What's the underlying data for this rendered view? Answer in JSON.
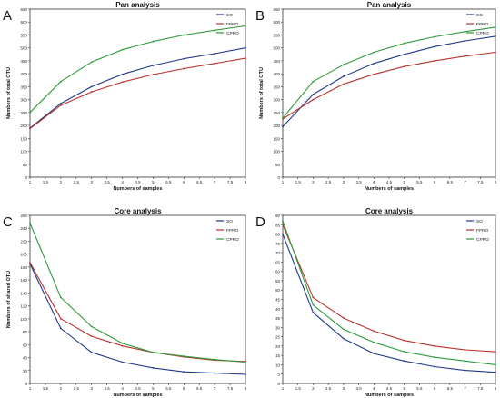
{
  "colors": {
    "SO": "#1f3a8a",
    "FPRO": "#b5342b",
    "CPRO": "#2e9a3a"
  },
  "chart_data": [
    {
      "panel_letter": "A",
      "type": "line",
      "title": "Pan analysis",
      "xlabel": "Numbers of samples",
      "ylabel": "Numbers of total OTU",
      "x": [
        1,
        2,
        3,
        4,
        5,
        6,
        7,
        8
      ],
      "xlim": [
        1,
        8
      ],
      "xticks": [
        "1",
        "1.5",
        "2",
        "2.5",
        "3",
        "3.5",
        "4",
        "4.5",
        "5",
        "5.5",
        "6",
        "6.5",
        "7",
        "7.5",
        "8"
      ],
      "ylim": [
        0,
        650
      ],
      "yticks": [
        "0",
        "50",
        "100",
        "150",
        "200",
        "250",
        "300",
        "350",
        "400",
        "450",
        "500",
        "550",
        "600",
        "650"
      ],
      "legend_position": "top-right",
      "series": [
        {
          "name": "SO",
          "values": [
            190,
            285,
            350,
            398,
            432,
            458,
            478,
            500
          ]
        },
        {
          "name": "FPRO",
          "values": [
            188,
            278,
            330,
            368,
            397,
            420,
            440,
            460
          ]
        },
        {
          "name": "CPRO",
          "values": [
            250,
            370,
            445,
            493,
            525,
            550,
            568,
            585
          ]
        }
      ]
    },
    {
      "panel_letter": "B",
      "type": "line",
      "title": "Pan analysis",
      "xlabel": "Numbers of samples",
      "ylabel": "Numbers of total OTU",
      "x": [
        1,
        2,
        3,
        4,
        5,
        6,
        7,
        8
      ],
      "xlim": [
        1,
        8
      ],
      "xticks": [
        "1",
        "1.5",
        "2",
        "2.5",
        "3",
        "3.5",
        "4",
        "4.5",
        "5",
        "5.5",
        "6",
        "6.5",
        "7",
        "7.5",
        "8"
      ],
      "ylim": [
        0,
        650
      ],
      "yticks": [
        "0",
        "50",
        "100",
        "150",
        "200",
        "250",
        "300",
        "350",
        "400",
        "450",
        "500",
        "550",
        "600",
        "650"
      ],
      "legend_position": "top-right",
      "series": [
        {
          "name": "SO",
          "values": [
            195,
            320,
            390,
            440,
            475,
            505,
            527,
            545
          ]
        },
        {
          "name": "FPRO",
          "values": [
            225,
            300,
            360,
            398,
            428,
            450,
            468,
            483
          ]
        },
        {
          "name": "CPRO",
          "values": [
            228,
            370,
            435,
            483,
            518,
            543,
            563,
            580
          ]
        }
      ]
    },
    {
      "panel_letter": "C",
      "type": "line",
      "title": "Core analysis",
      "xlabel": "Numbers of samples",
      "ylabel": "Numbers of shared OTU",
      "x": [
        1,
        2,
        3,
        4,
        5,
        6,
        7,
        8
      ],
      "xlim": [
        1,
        8
      ],
      "xticks": [
        "1",
        "1.5",
        "2",
        "2.5",
        "3",
        "3.5",
        "4",
        "4.5",
        "5",
        "5.5",
        "6",
        "6.5",
        "7",
        "7.5",
        "8"
      ],
      "ylim": [
        0,
        260
      ],
      "yticks": [
        "0",
        "20",
        "40",
        "60",
        "80",
        "100",
        "120",
        "140",
        "160",
        "180",
        "200",
        "220",
        "240",
        "260"
      ],
      "legend_position": "top-right",
      "series": [
        {
          "name": "SO",
          "values": [
            185,
            85,
            48,
            33,
            24,
            18,
            16,
            14
          ]
        },
        {
          "name": "FPRO",
          "values": [
            187,
            100,
            73,
            58,
            48,
            41,
            36,
            34
          ]
        },
        {
          "name": "CPRO",
          "values": [
            248,
            133,
            88,
            62,
            48,
            42,
            37,
            33
          ]
        }
      ]
    },
    {
      "panel_letter": "D",
      "type": "line",
      "title": "Core analysis",
      "xlabel": "Numbers of samples",
      "ylabel": "",
      "x": [
        1,
        2,
        3,
        4,
        5,
        6,
        7,
        8
      ],
      "xlim": [
        1,
        8
      ],
      "xticks": [
        "1",
        "1.5",
        "2",
        "2.5",
        "3",
        "3.5",
        "4",
        "4.5",
        "5",
        "5.5",
        "6",
        "6.5",
        "7",
        "7.5",
        "8"
      ],
      "ylim": [
        0,
        90
      ],
      "yticks": [
        "0",
        "5",
        "10",
        "15",
        "20",
        "25",
        "30",
        "35",
        "40",
        "45",
        "50",
        "55",
        "60",
        "65",
        "70",
        "75",
        "80",
        "85",
        "90"
      ],
      "legend_position": "top-right",
      "series": [
        {
          "name": "SO",
          "values": [
            80,
            38,
            24,
            16,
            12,
            9,
            7,
            6
          ]
        },
        {
          "name": "FPRO",
          "values": [
            85,
            46,
            35,
            28,
            23,
            20,
            18,
            17
          ]
        },
        {
          "name": "CPRO",
          "values": [
            87,
            42,
            29,
            22,
            17,
            14,
            12,
            10
          ]
        }
      ]
    }
  ]
}
